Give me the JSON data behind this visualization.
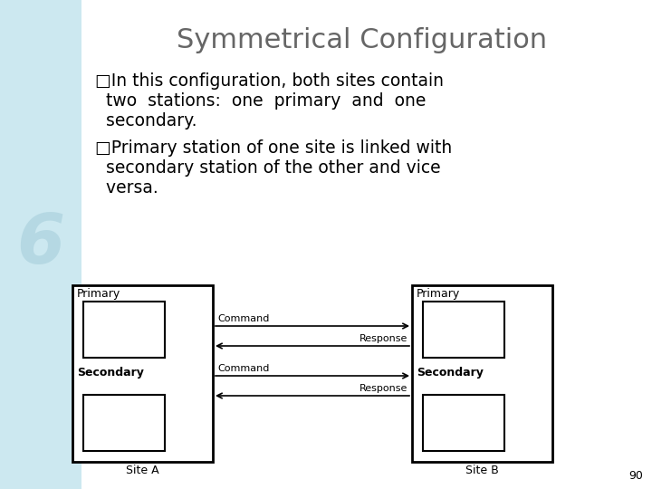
{
  "title": "Symmetrical Configuration",
  "title_fontsize": 22,
  "title_color": "#666666",
  "bg_color": "#ffffff",
  "left_bg_color": "#cce8f0",
  "text_fontsize": 13.5,
  "text_color": "#000000",
  "primary_label": "Primary",
  "secondary_label": "Secondary",
  "site_a_label": "Site A",
  "site_b_label": "Site B",
  "command_label": "Command",
  "response_label": "Response",
  "page_number": "90",
  "bullet_char": "□",
  "b1_line1": "□In this configuration, both sites contain",
  "b1_line2": "  two  stations:  one  primary  and  one",
  "b1_line3": "  secondary.",
  "b2_line1": "□Primary station of one site is linked with",
  "b2_line2": "  secondary station of the other and vice",
  "b2_line3": "  versa."
}
